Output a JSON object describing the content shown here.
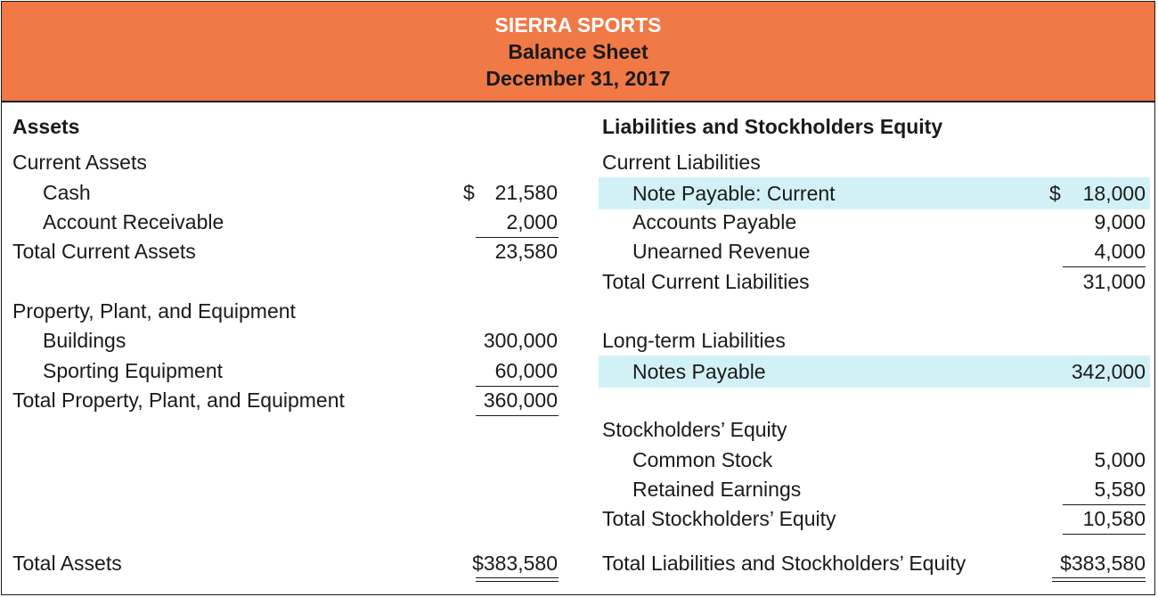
{
  "header": {
    "company": "SIERRA SPORTS",
    "title": "Balance Sheet",
    "date": "December 31, 2017"
  },
  "colors": {
    "header_bg": "#f07945",
    "highlight_bg": "#d2f1f6"
  },
  "assets": {
    "heading": "Assets",
    "current_heading": "Current Assets",
    "cash_label": "Cash",
    "cash_dollar": "$",
    "cash_amount": "21,580",
    "ar_label": "Account Receivable",
    "ar_amount": "2,000",
    "total_current_label": "Total Current Assets",
    "total_current_amount": "23,580",
    "ppe_heading": "Property, Plant, and Equipment",
    "buildings_label": "Buildings",
    "buildings_amount": "300,000",
    "equipment_label": "Sporting Equipment",
    "equipment_amount": "60,000",
    "total_ppe_label": "Total Property, Plant, and Equipment",
    "total_ppe_amount": "360,000",
    "total_label": "Total Assets",
    "total_amount": "$383,580"
  },
  "liabilities": {
    "heading": "Liabilities and Stockholders Equity",
    "current_heading": "Current Liabilities",
    "note_current_label": "Note Payable: Current",
    "note_current_dollar": "$",
    "note_current_amount": "18,000",
    "ap_label": "Accounts Payable",
    "ap_amount": "9,000",
    "unearned_label": "Unearned Revenue",
    "unearned_amount": "4,000",
    "total_current_label": "Total Current Liabilities",
    "total_current_amount": "31,000",
    "longterm_heading": "Long-term Liabilities",
    "notes_payable_label": "Notes Payable",
    "notes_payable_amount": "342,000",
    "equity_heading": "Stockholders’ Equity",
    "common_label": "Common Stock",
    "common_amount": "5,000",
    "retained_label": "Retained Earnings",
    "retained_amount": "5,580",
    "total_equity_label": "Total Stockholders’ Equity",
    "total_equity_amount": "10,580",
    "total_label": "Total Liabilities and Stockholders’ Equity",
    "total_amount": "$383,580"
  }
}
